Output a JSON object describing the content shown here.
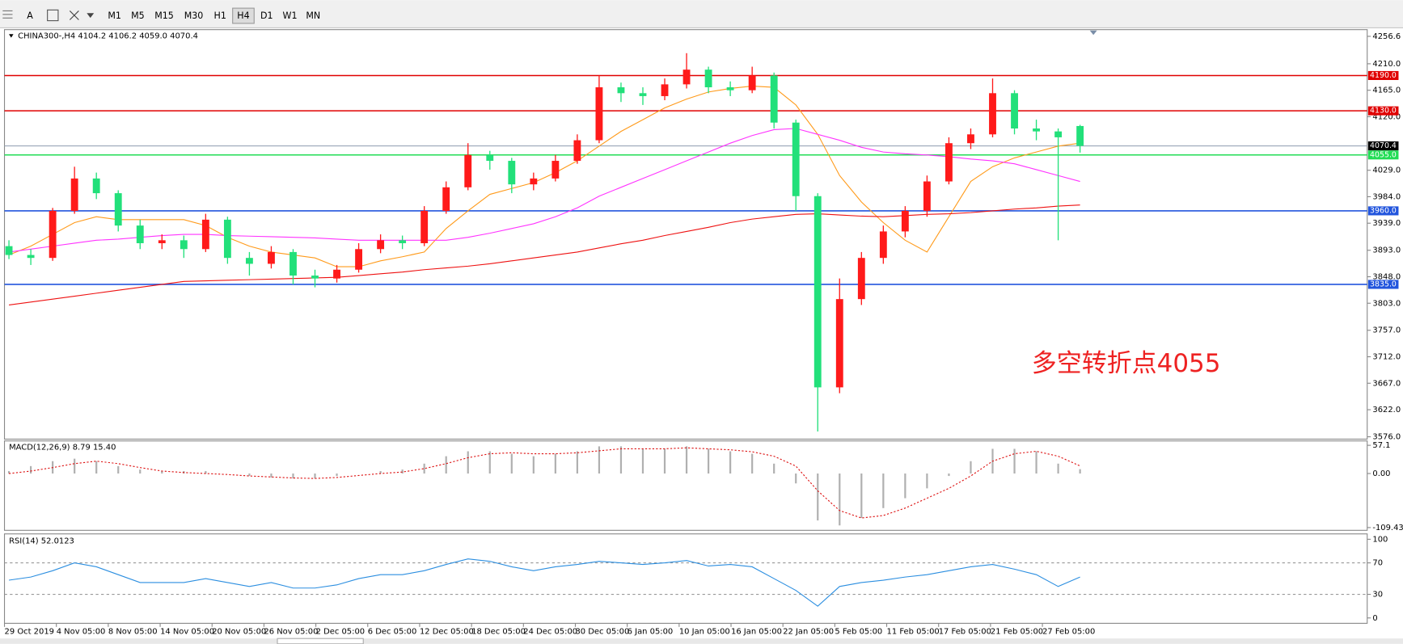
{
  "toolbar": {
    "tools": [
      "A"
    ],
    "timeframes": [
      "M1",
      "M5",
      "M15",
      "M30",
      "H1",
      "H4",
      "D1",
      "W1",
      "MN"
    ],
    "active": "H4"
  },
  "chart_data": [
    {
      "type": "candlestick",
      "title": "CHINA300-,H4  4104.2 4106.2 4059.0 4070.4",
      "annotation": "多空转折点4055",
      "up_color": "#ff1a1a",
      "down_color": "#22e07a",
      "open": [
        3900,
        3885,
        3880,
        3960,
        4015,
        3990,
        3935,
        3905,
        3910,
        3895,
        3945,
        3880,
        3870,
        3890,
        3850,
        3845,
        3860,
        3895,
        3910,
        3905,
        3960,
        4000,
        4055,
        4045,
        4005,
        4015,
        4045,
        4080,
        4170,
        4160,
        4155,
        4175,
        4200,
        4170,
        4165,
        4190,
        4110,
        3985,
        3660,
        3810,
        3880,
        3925,
        3960,
        4010,
        4075,
        4090,
        4160,
        4100,
        4095,
        4104.2
      ],
      "high": [
        3910,
        3895,
        3965,
        4035,
        4025,
        3995,
        3945,
        3920,
        3918,
        3955,
        3950,
        3890,
        3900,
        3895,
        3860,
        3868,
        3905,
        3920,
        3918,
        3968,
        4010,
        4075,
        4062,
        4050,
        4025,
        4055,
        4090,
        4190,
        4178,
        4170,
        4185,
        4228,
        4205,
        4180,
        4205,
        4195,
        4115,
        3990,
        3845,
        3890,
        3935,
        3968,
        4020,
        4085,
        4100,
        4185,
        4165,
        4115,
        4100,
        4106.2
      ],
      "low": [
        3878,
        3868,
        3875,
        3955,
        3980,
        3925,
        3895,
        3895,
        3880,
        3890,
        3870,
        3850,
        3862,
        3835,
        3830,
        3838,
        3855,
        3888,
        3895,
        3900,
        3955,
        3995,
        4030,
        3990,
        3995,
        4010,
        4040,
        4075,
        4145,
        4140,
        4148,
        4168,
        4160,
        4155,
        4160,
        4100,
        3960,
        3585,
        3650,
        3800,
        3870,
        3915,
        3950,
        4005,
        4065,
        4085,
        4090,
        4080,
        3910,
        4059.0
      ],
      "close": [
        3885,
        3880,
        3960,
        4015,
        3990,
        3935,
        3905,
        3910,
        3895,
        3945,
        3880,
        3870,
        3890,
        3850,
        3845,
        3860,
        3895,
        3910,
        3905,
        3960,
        4000,
        4055,
        4045,
        4005,
        4015,
        4045,
        4080,
        4170,
        4160,
        4155,
        4175,
        4200,
        4170,
        4165,
        4190,
        4110,
        3985,
        3660,
        3810,
        3880,
        3925,
        3960,
        4010,
        4075,
        4090,
        4160,
        4100,
        4095,
        4085,
        4070.4
      ],
      "series": [
        {
          "color": "#ff9a1a",
          "values": [
            3885,
            3900,
            3920,
            3940,
            3950,
            3945,
            3945,
            3945,
            3945,
            3935,
            3915,
            3900,
            3890,
            3885,
            3880,
            3865,
            3865,
            3875,
            3882,
            3890,
            3930,
            3960,
            3988,
            3998,
            4008,
            4025,
            4045,
            4070,
            4095,
            4115,
            4135,
            4150,
            4162,
            4168,
            4172,
            4170,
            4140,
            4090,
            4020,
            3975,
            3940,
            3910,
            3890,
            3950,
            4010,
            4035,
            4050,
            4060,
            4070,
            4075
          ]
        },
        {
          "color": "#ff33ff",
          "values": [
            3890,
            3895,
            3900,
            3905,
            3910,
            3912,
            3915,
            3918,
            3920,
            3920,
            3918,
            3917,
            3916,
            3915,
            3914,
            3912,
            3910,
            3910,
            3910,
            3910,
            3910,
            3915,
            3922,
            3930,
            3938,
            3950,
            3965,
            3985,
            4000,
            4015,
            4030,
            4045,
            4060,
            4075,
            4088,
            4098,
            4100,
            4090,
            4080,
            4068,
            4060,
            4057,
            4055,
            4052,
            4048,
            4045,
            4040,
            4030,
            4020,
            4010
          ]
        },
        {
          "color": "#ee1111",
          "values": [
            3800,
            3805,
            3810,
            3815,
            3820,
            3825,
            3830,
            3835,
            3840,
            3841,
            3842,
            3843,
            3844,
            3845,
            3846,
            3847,
            3850,
            3853,
            3856,
            3860,
            3863,
            3866,
            3870,
            3875,
            3880,
            3885,
            3890,
            3897,
            3904,
            3910,
            3918,
            3925,
            3932,
            3940,
            3946,
            3950,
            3954,
            3955,
            3953,
            3951,
            3950,
            3952,
            3954,
            3955,
            3957,
            3960,
            3963,
            3965,
            3968,
            3970
          ]
        }
      ],
      "levels": [
        {
          "value": 4190.0,
          "label": "4190.0",
          "color": "#e00000"
        },
        {
          "value": 4130.0,
          "label": "4130.0",
          "color": "#e00000"
        },
        {
          "value": 4070.4,
          "label": "4070.4",
          "color": "#9aa6b8"
        },
        {
          "value": 4055.0,
          "label": "4055.0",
          "color": "#22dd55"
        },
        {
          "value": 3960.0,
          "label": "3960.0",
          "color": "#2255dd"
        },
        {
          "value": 3835.0,
          "label": "3835.0",
          "color": "#2255dd"
        }
      ],
      "ylim": [
        3572,
        4268
      ],
      "yticks": [
        4256.6,
        {
          "value": 4210.0,
          "label": "4210.0"
        },
        {
          "value": 4165.0,
          "label": "4165.0"
        },
        {
          "value": 4120.0,
          "label": "4120.0"
        },
        {
          "value": 4029.0,
          "label": "4029.0"
        },
        {
          "value": 3984.0,
          "label": "3984.0"
        },
        {
          "value": 3939.0,
          "label": "3939.0"
        },
        {
          "value": 3893.0,
          "label": "3893.0"
        },
        {
          "value": 3848.0,
          "label": "3848.0"
        },
        {
          "value": 3803.0,
          "label": "3803.0"
        },
        {
          "value": 3757.0,
          "label": "3757.0"
        },
        {
          "value": 3712.0,
          "label": "3712.0"
        },
        {
          "value": 3667.0,
          "label": "3667.0"
        },
        {
          "value": 3622.0,
          "label": "3622.0"
        },
        {
          "value": 3576.0,
          "label": "3576.0"
        }
      ],
      "x_labels": [
        "29 Oct 2019",
        "4 Nov 05:00",
        "8 Nov 05:00",
        "14 Nov 05:00",
        "20 Nov 05:00",
        "26 Nov 05:00",
        "2 Dec 05:00",
        "6 Dec 05:00",
        "12 Dec 05:00",
        "18 Dec 05:00",
        "24 Dec 05:00",
        "30 Dec 05:00",
        "6 Jan 05:00",
        "10 Jan 05:00",
        "16 Jan 05:00",
        "22 Jan 05:00",
        "5 Feb 05:00",
        "11 Feb 05:00",
        "17 Feb 05:00",
        "21 Feb 05:00",
        "27 Feb 05:00"
      ]
    },
    {
      "type": "bar",
      "title": "MACD(12,26,9) 8.79 15.40",
      "ylim": [
        -115,
        66
      ],
      "yticks": [
        57.1,
        {
          "value": 0,
          "label": "0.00"
        },
        -109.43
      ],
      "series": [
        {
          "kind": "bar",
          "color": "#b0b0b0",
          "values": [
            5,
            15,
            25,
            30,
            25,
            15,
            8,
            5,
            5,
            5,
            0,
            -5,
            -8,
            -10,
            -10,
            -5,
            0,
            5,
            8,
            20,
            35,
            45,
            45,
            40,
            35,
            40,
            45,
            55,
            55,
            50,
            50,
            55,
            50,
            45,
            40,
            20,
            -20,
            -95,
            -105,
            -90,
            -70,
            -50,
            -30,
            -5,
            25,
            50,
            50,
            45,
            20,
            8.79
          ]
        },
        {
          "kind": "line",
          "color": "#dd1111",
          "values": [
            0,
            5,
            12,
            20,
            25,
            20,
            12,
            5,
            2,
            0,
            -2,
            -5,
            -7,
            -9,
            -10,
            -8,
            -4,
            0,
            3,
            10,
            20,
            32,
            40,
            42,
            40,
            40,
            42,
            46,
            50,
            50,
            50,
            52,
            50,
            48,
            44,
            35,
            15,
            -35,
            -75,
            -90,
            -85,
            -70,
            -50,
            -30,
            -5,
            25,
            40,
            45,
            35,
            15.4
          ]
        }
      ]
    },
    {
      "type": "line",
      "title": "RSI(14) 52.0123",
      "ylim": [
        0,
        100
      ],
      "yticks": [
        100,
        70,
        30,
        0
      ],
      "levels": [
        70,
        30
      ],
      "series": [
        {
          "color": "#2b8ee0",
          "values": [
            48,
            52,
            60,
            70,
            65,
            55,
            45,
            45,
            45,
            50,
            45,
            40,
            45,
            38,
            38,
            42,
            50,
            55,
            55,
            60,
            68,
            75,
            72,
            65,
            60,
            65,
            68,
            72,
            70,
            68,
            70,
            73,
            66,
            68,
            65,
            50,
            35,
            15,
            40,
            45,
            48,
            52,
            55,
            60,
            65,
            68,
            62,
            55,
            40,
            52.0123
          ]
        }
      ]
    }
  ]
}
